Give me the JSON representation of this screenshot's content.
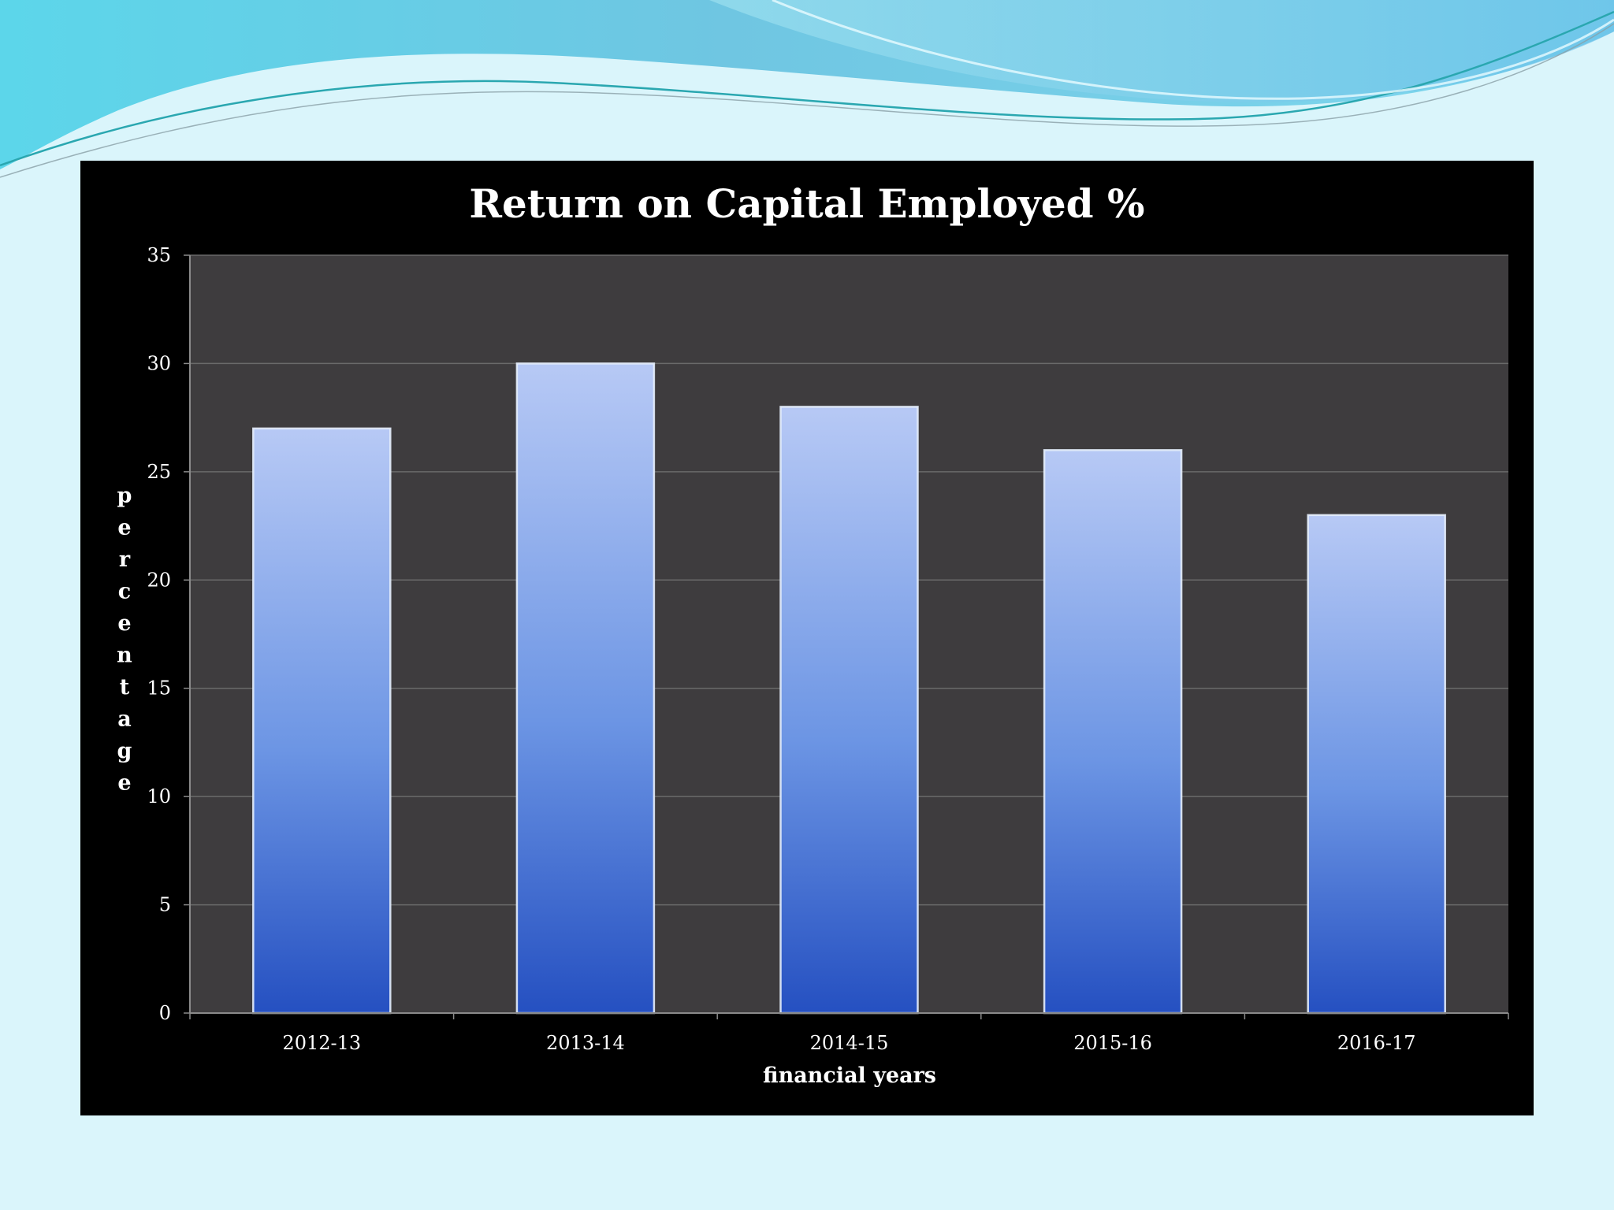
{
  "chart_data": {
    "type": "bar",
    "title": "Return on Capital Employed %",
    "xlabel": "financial years",
    "ylabel": "percentage",
    "categories": [
      "2012-13",
      "2013-14",
      "2014-15",
      "2015-16",
      "2016-17"
    ],
    "values": [
      27,
      30,
      28,
      26,
      23
    ],
    "ylim": [
      0,
      35
    ],
    "yticks": [
      0,
      5,
      10,
      15,
      20,
      25,
      30,
      35
    ],
    "grid": true,
    "legend": "none",
    "colors": {
      "panel_background": "#000000",
      "plot_background": "#3e3c3e",
      "bar_top": "#b7c9f5",
      "bar_mid": "#6c95e4",
      "bar_bottom": "#2550c1",
      "gridline": "#6a6a6a",
      "text": "#ffffff"
    }
  }
}
